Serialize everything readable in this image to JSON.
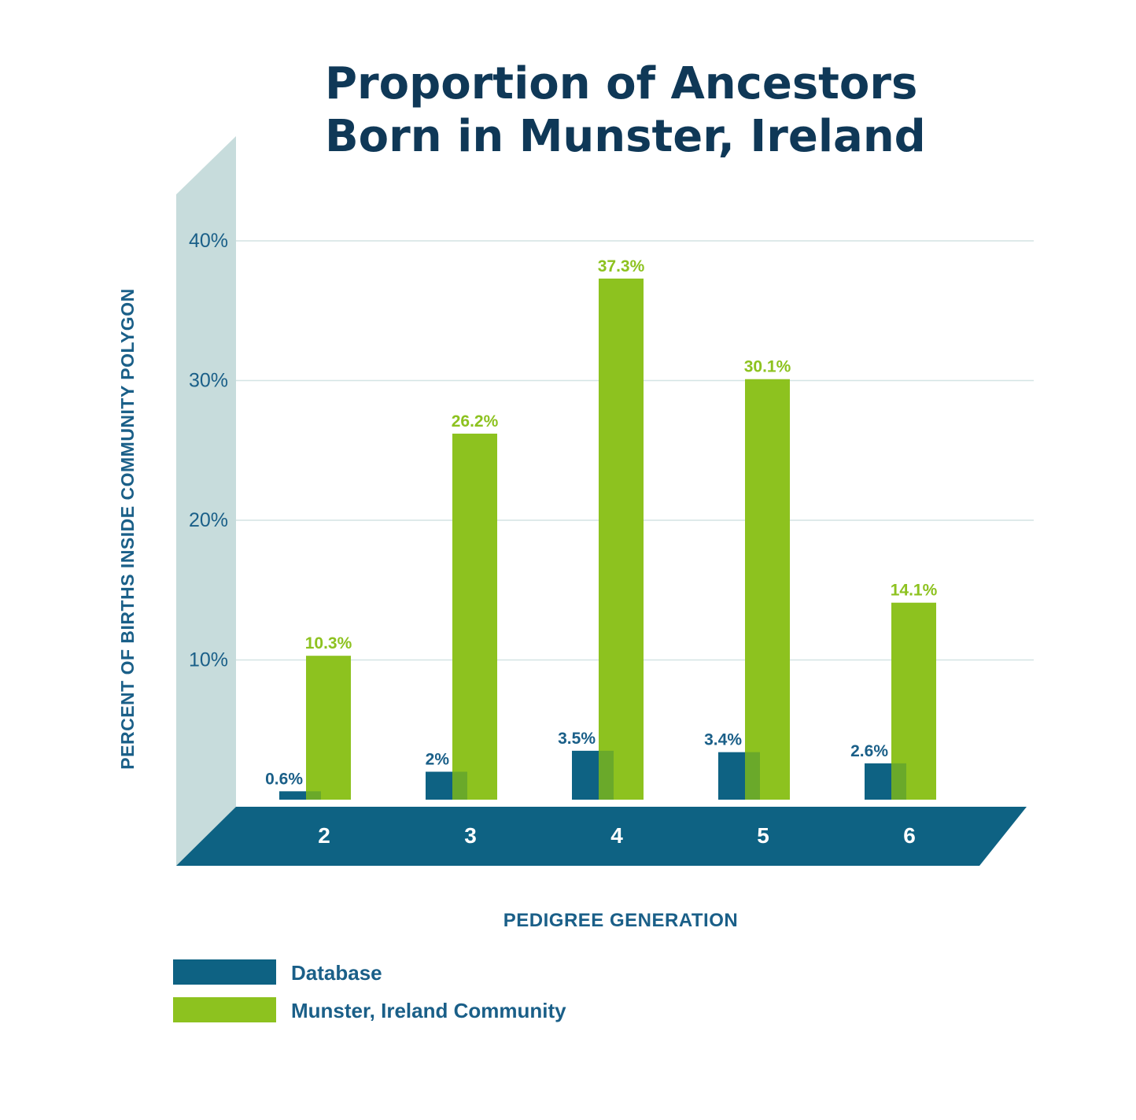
{
  "chart_data": {
    "type": "bar",
    "title_lines": [
      "Proportion of Ancestors",
      "Born in Munster, Ireland"
    ],
    "xlabel": "PEDIGREE GENERATION",
    "ylabel": "PERCENT OF BIRTHS INSIDE COMMUNITY POLYGON",
    "categories": [
      "2",
      "3",
      "4",
      "5",
      "6"
    ],
    "ylim": [
      0,
      40
    ],
    "yticks": [
      {
        "value": 10,
        "label": "10%"
      },
      {
        "value": 20,
        "label": "20%"
      },
      {
        "value": 30,
        "label": "30%"
      },
      {
        "value": 40,
        "label": "40%"
      }
    ],
    "grid": true,
    "legend_position": "bottom-left",
    "series": [
      {
        "name": "Database",
        "color": "#0e6283",
        "values": [
          0.6,
          2,
          3.5,
          3.4,
          2.6
        ],
        "labels": [
          "0.6%",
          "2%",
          "3.5%",
          "3.4%",
          "2.6%"
        ]
      },
      {
        "name": "Munster, Ireland Community",
        "color": "#8dc21f",
        "values": [
          10.3,
          26.2,
          37.3,
          30.1,
          14.1
        ],
        "labels": [
          "10.3%",
          "26.2%",
          "37.3%",
          "30.1%",
          "14.1%"
        ]
      }
    ]
  },
  "colors": {
    "wall": "#c7dcdc",
    "floor": "#0e6283",
    "grid": "#d4e4e4",
    "title": "#0f3857",
    "axis_text": "#1a5f88",
    "overlap": "#6aa92a"
  }
}
